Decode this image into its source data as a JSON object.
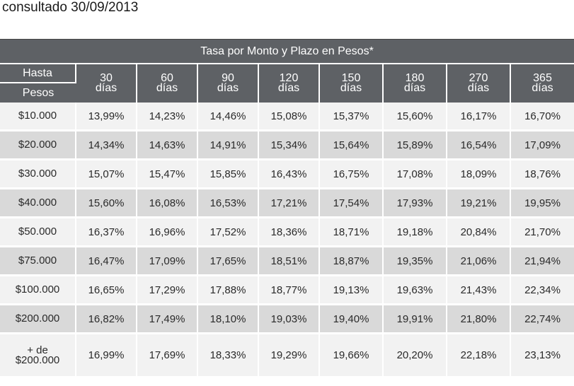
{
  "caption": "consultado 30/09/2013",
  "table": {
    "title": "Tasa por Monto y Plazo en Pesos*",
    "header_hasta": "Hasta",
    "header_pesos": "Pesos",
    "terms": [
      {
        "num": "30",
        "unit": "días"
      },
      {
        "num": "60",
        "unit": "días"
      },
      {
        "num": "90",
        "unit": "días"
      },
      {
        "num": "120",
        "unit": "días"
      },
      {
        "num": "150",
        "unit": "días"
      },
      {
        "num": "180",
        "unit": "días"
      },
      {
        "num": "270",
        "unit": "días"
      },
      {
        "num": "365",
        "unit": "días"
      }
    ],
    "rows": [
      {
        "amount": [
          "$10.000"
        ],
        "rates": [
          "13,99%",
          "14,23%",
          "14,46%",
          "15,08%",
          "15,37%",
          "15,60%",
          "16,17%",
          "16,70%"
        ]
      },
      {
        "amount": [
          "$20.000"
        ],
        "rates": [
          "14,34%",
          "14,63%",
          "14,91%",
          "15,34%",
          "15,64%",
          "15,89%",
          "16,54%",
          "17,09%"
        ]
      },
      {
        "amount": [
          "$30.000"
        ],
        "rates": [
          "15,07%",
          "15,47%",
          "15,85%",
          "16,43%",
          "16,75%",
          "17,08%",
          "18,09%",
          "18,76%"
        ]
      },
      {
        "amount": [
          "$40.000"
        ],
        "rates": [
          "15,60%",
          "16,08%",
          "16,53%",
          "17,21%",
          "17,54%",
          "17,93%",
          "19,21%",
          "19,95%"
        ]
      },
      {
        "amount": [
          "$50.000"
        ],
        "rates": [
          "16,37%",
          "16,96%",
          "17,52%",
          "18,36%",
          "18,71%",
          "19,18%",
          "20,84%",
          "21,70%"
        ]
      },
      {
        "amount": [
          "$75.000"
        ],
        "rates": [
          "16,47%",
          "17,09%",
          "17,65%",
          "18,51%",
          "18,87%",
          "19,35%",
          "21,06%",
          "21,94%"
        ]
      },
      {
        "amount": [
          "$100.000"
        ],
        "rates": [
          "16,65%",
          "17,29%",
          "17,88%",
          "18,77%",
          "19,13%",
          "19,63%",
          "21,43%",
          "22,34%"
        ]
      },
      {
        "amount": [
          "$200.000"
        ],
        "rates": [
          "16,82%",
          "17,49%",
          "18,10%",
          "19,03%",
          "19,40%",
          "19,91%",
          "21,80%",
          "22,74%"
        ]
      },
      {
        "amount": [
          "+ de",
          "$200.000"
        ],
        "rates": [
          "16,99%",
          "17,69%",
          "18,33%",
          "19,29%",
          "19,66%",
          "20,20%",
          "22,18%",
          "23,13%"
        ]
      }
    ]
  }
}
